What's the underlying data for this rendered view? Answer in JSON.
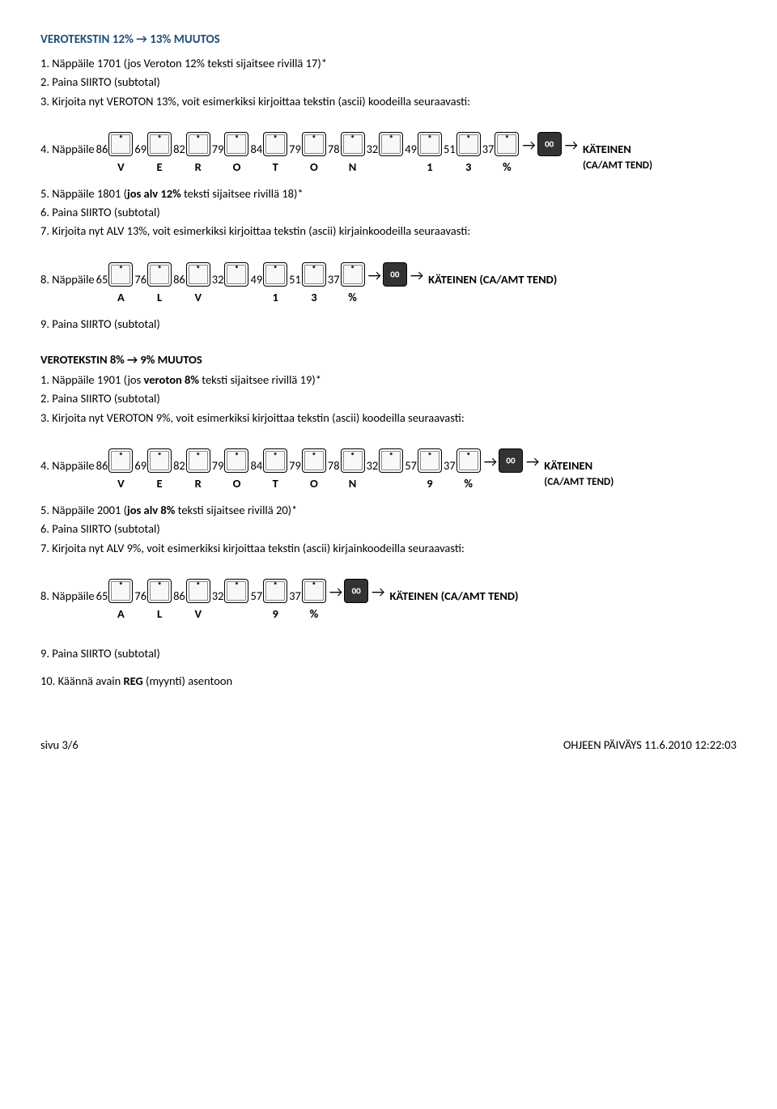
{
  "section1": {
    "title": "VEROTEKSTIN 12% → 13% MUUTOS",
    "steps": [
      "1.  Näppäile 1701 (jos Veroton 12% teksti  sijaitsee rivillä 17)*",
      "2.  Paina  SIIRTO (subtotal)",
      "3.  Kirjoita nyt VEROTON  13%, voit esimerkiksi kirjoittaa tekstin (ascii) koodeilla seuraavasti:"
    ],
    "row1": {
      "prefix": "4.  Näppäile ",
      "codes": [
        "86",
        "69",
        "82",
        "79",
        "84",
        "79",
        "78",
        "32",
        "49",
        "51",
        "37"
      ],
      "letters": [
        "V",
        "E",
        "R",
        "O",
        "T",
        "O",
        "N",
        "",
        "1",
        "3",
        "%"
      ],
      "suffix": "KÄTEINEN",
      "suffix2": "(CA/AMT TEND)"
    },
    "steps2": [
      {
        "n": "5.",
        "txt": "Näppäile 1801 (",
        "bold": "jos alv 12%",
        "rest": " teksti sijaitsee rivillä 18)*"
      },
      {
        "n": "6.",
        "txt": "Paina  SIIRTO (subtotal)"
      },
      {
        "n": "7.",
        "txt": "Kirjoita nyt ALV  13%, voit esimerkiksi kirjoittaa tekstin (ascii) kirjainkoodeilla seuraavasti:"
      }
    ],
    "row2": {
      "prefix": "8.  Näppäile ",
      "codes": [
        "65",
        "76",
        "86",
        "32",
        "49",
        "51",
        "37"
      ],
      "letters": [
        "A",
        "L",
        "V",
        "",
        "1",
        "3",
        "%"
      ],
      "suffix": "KÄTEINEN (CA/AMT TEND)"
    },
    "step9": "9.  Paina  SIIRTO (subtotal)"
  },
  "section2": {
    "title": "VEROTEKSTIN 8% → 9% MUUTOS",
    "steps": [
      {
        "n": "1.",
        "pre": "Näppäile 1901 (jos ",
        "bold": "veroton 8%",
        "rest": " teksti  sijaitsee rivillä 19)*"
      },
      {
        "n": "2.",
        "pre": "Paina  SIIRTO (subtotal)"
      },
      {
        "n": "3.",
        "pre": "Kirjoita nyt VEROTON  9%, voit esimerkiksi kirjoittaa tekstin (ascii) koodeilla seuraavasti:"
      }
    ],
    "row1": {
      "prefix": "4.  Näppäile ",
      "codes": [
        "86",
        "69",
        "82",
        "79",
        "84",
        "79",
        "78",
        "32",
        "57",
        "37"
      ],
      "letters": [
        "V",
        "E",
        "R",
        "O",
        "T",
        "O",
        "N",
        "",
        "9",
        "%"
      ],
      "suffix": "KÄTEINEN",
      "suffix2": "(CA/AMT TEND)"
    },
    "steps2": [
      {
        "n": "5.",
        "pre": "Näppäile 2001 (",
        "bold": "jos alv 8%",
        "rest": " teksti sijaitsee rivillä 20)*"
      },
      {
        "n": "6.",
        "pre": "Paina  SIIRTO (subtotal)"
      },
      {
        "n": "7.",
        "pre": "Kirjoita nyt ALV  9%, voit esimerkiksi kirjoittaa tekstin (ascii) kirjainkoodeilla seuraavasti:"
      }
    ],
    "row2": {
      "prefix": "8.  Näppäile ",
      "codes": [
        "65",
        "76",
        "86",
        "32",
        "57",
        "37"
      ],
      "letters": [
        "A",
        "L",
        "V",
        "",
        "9",
        "%"
      ],
      "suffix": "KÄTEINEN (CA/AMT TEND)"
    },
    "step9": "9.  Paina  SIIRTO (subtotal)",
    "step10pre": "10. Käännä avain ",
    "step10bold": "REG",
    "step10rest": " (myynti) asentoon"
  },
  "footer": {
    "left": "sivu 3/6",
    "right": "OHJEEN PÄIVÄYS 11.6.2010 12:22:03"
  }
}
